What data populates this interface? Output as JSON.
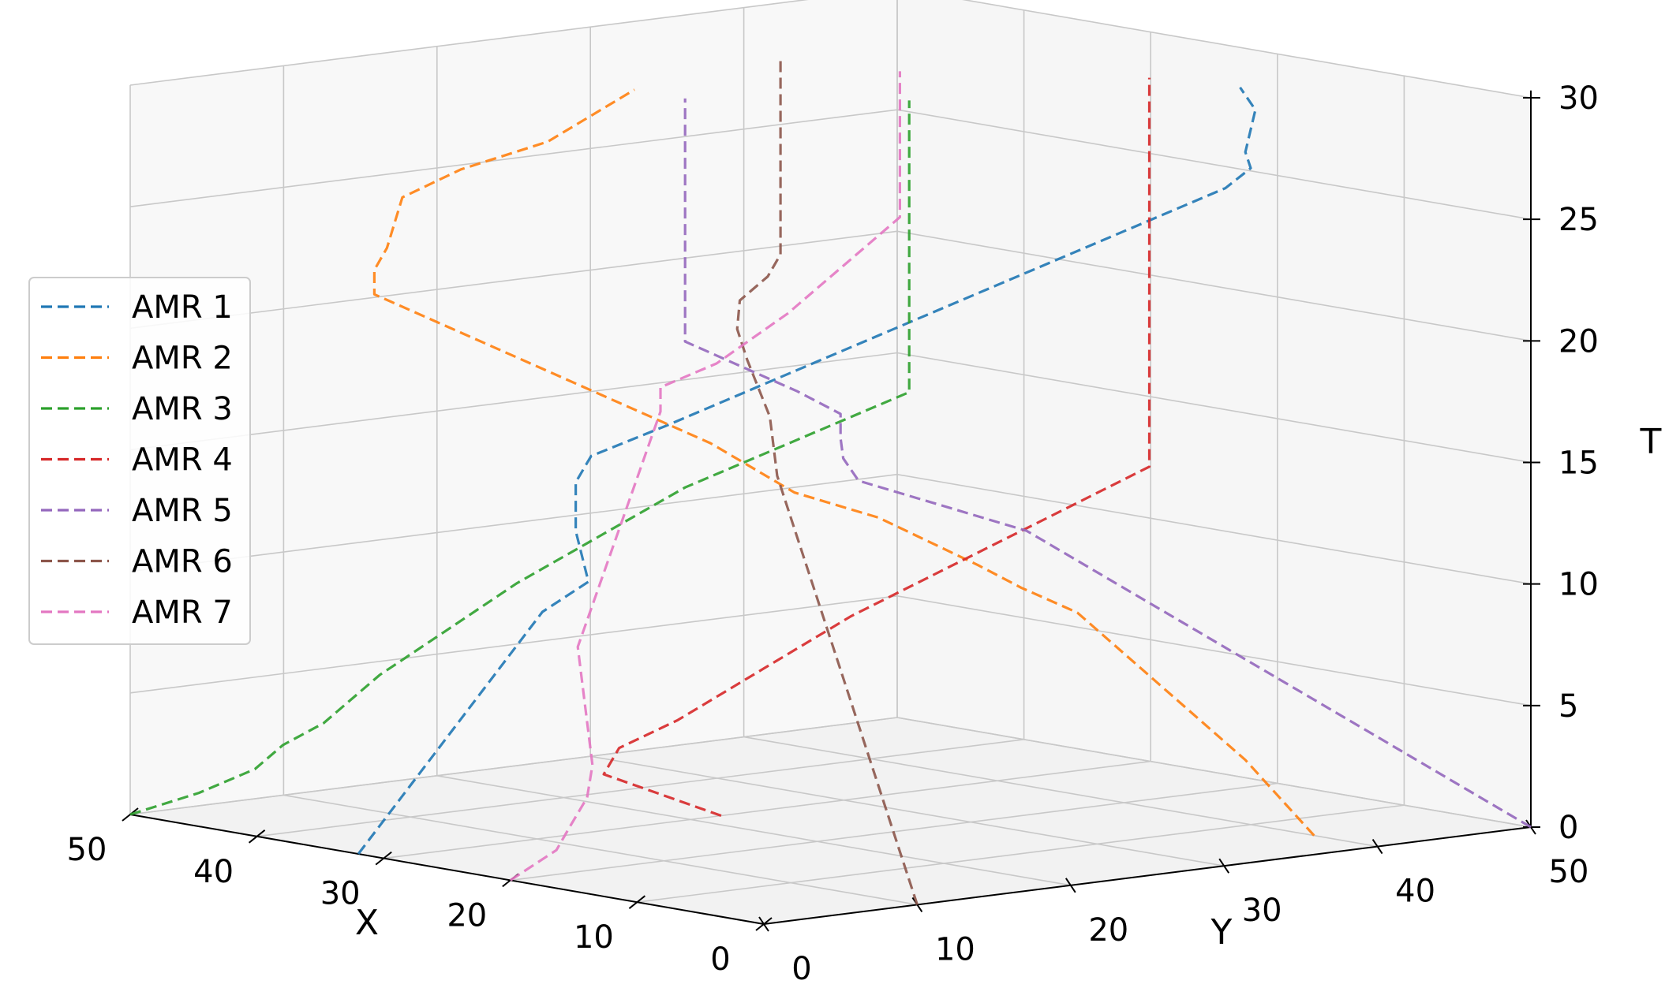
{
  "chart_data": {
    "type": "line",
    "projection": "3d",
    "title": "",
    "xlabel": "X",
    "ylabel": "Y",
    "zlabel": "T",
    "xlim": [
      0,
      50
    ],
    "ylim": [
      0,
      50
    ],
    "zlim": [
      0,
      30
    ],
    "x_ticks": [
      "0",
      "10",
      "20",
      "30",
      "40",
      "50"
    ],
    "y_ticks": [
      "0",
      "10",
      "20",
      "30",
      "40",
      "50"
    ],
    "z_ticks": [
      "0",
      "5",
      "10",
      "15",
      "20",
      "25",
      "30"
    ],
    "grid": true,
    "legend_position": "left",
    "line_style": "dashed",
    "series": [
      {
        "name": "AMR 1",
        "color": "#1f77b4",
        "points": [
          [
            32,
            0,
            0
          ],
          [
            32,
            4,
            3
          ],
          [
            32,
            8,
            6
          ],
          [
            32,
            12,
            9
          ],
          [
            32,
            15,
            10
          ],
          [
            33,
            15,
            12
          ],
          [
            33,
            15,
            14
          ],
          [
            33,
            16,
            15
          ],
          [
            32,
            20,
            16
          ],
          [
            28,
            24,
            18
          ],
          [
            24,
            28,
            20
          ],
          [
            20,
            32,
            22
          ],
          [
            16,
            36,
            24
          ],
          [
            12,
            40,
            26
          ],
          [
            10,
            40,
            27
          ],
          [
            8,
            38,
            28
          ],
          [
            6,
            37,
            30
          ],
          [
            6,
            36,
            31
          ]
        ]
      },
      {
        "name": "AMR 2",
        "color": "#ff7f0e",
        "points": [
          [
            5,
            40,
            0
          ],
          [
            8,
            38,
            3
          ],
          [
            11,
            35,
            6
          ],
          [
            14,
            32,
            9
          ],
          [
            16,
            30,
            10
          ],
          [
            17,
            28,
            11
          ],
          [
            20,
            24,
            13
          ],
          [
            23,
            21,
            14
          ],
          [
            26,
            18,
            16
          ],
          [
            30,
            14,
            18
          ],
          [
            34,
            10,
            20
          ],
          [
            38,
            6,
            22
          ],
          [
            38,
            6,
            23
          ],
          [
            37,
            6,
            24
          ],
          [
            37,
            7,
            26
          ],
          [
            36,
            10,
            27
          ],
          [
            34,
            14,
            28
          ],
          [
            32,
            18,
            30
          ]
        ]
      },
      {
        "name": "AMR 3",
        "color": "#2ca02c",
        "points": [
          [
            50,
            0,
            0
          ],
          [
            47,
            2,
            1
          ],
          [
            45,
            4,
            2
          ],
          [
            44,
            5,
            3
          ],
          [
            42,
            6,
            4
          ],
          [
            40,
            8,
            6
          ],
          [
            37,
            10,
            8
          ],
          [
            34,
            12,
            10
          ],
          [
            31,
            15,
            12
          ],
          [
            28,
            18,
            14
          ],
          [
            24,
            22,
            16
          ],
          [
            20,
            26,
            18
          ],
          [
            20,
            26,
            20
          ],
          [
            20,
            26,
            22
          ],
          [
            20,
            26,
            24
          ],
          [
            20,
            26,
            26
          ],
          [
            20,
            26,
            28
          ],
          [
            20,
            26,
            30
          ]
        ]
      },
      {
        "name": "AMR 4",
        "color": "#d62728",
        "points": [
          [
            30,
            22,
            0
          ],
          [
            31,
            19,
            1
          ],
          [
            32,
            16,
            2
          ],
          [
            32,
            17,
            3
          ],
          [
            31,
            20,
            4
          ],
          [
            29,
            24,
            6
          ],
          [
            27,
            28,
            8
          ],
          [
            24,
            32,
            10
          ],
          [
            21,
            36,
            12
          ],
          [
            18,
            40,
            14
          ],
          [
            18,
            40,
            16
          ],
          [
            18,
            40,
            18
          ],
          [
            18,
            40,
            20
          ],
          [
            18,
            40,
            22
          ],
          [
            18,
            40,
            24
          ],
          [
            18,
            40,
            26
          ],
          [
            18,
            40,
            28
          ],
          [
            18,
            40,
            30
          ]
        ]
      },
      {
        "name": "AMR 5",
        "color": "#9467bd",
        "points": [
          [
            0,
            50,
            0
          ],
          [
            3,
            47,
            2
          ],
          [
            6,
            44,
            4
          ],
          [
            9,
            41,
            6
          ],
          [
            12,
            38,
            8
          ],
          [
            15,
            35,
            10
          ],
          [
            18,
            32,
            12
          ],
          [
            21,
            29,
            13
          ],
          [
            24,
            26,
            14
          ],
          [
            24,
            25,
            15
          ],
          [
            23,
            24,
            16
          ],
          [
            23,
            24,
            17
          ],
          [
            24,
            22,
            18
          ],
          [
            26,
            20,
            19
          ],
          [
            28,
            18,
            20
          ],
          [
            28,
            18,
            22
          ],
          [
            28,
            18,
            26
          ],
          [
            28,
            18,
            30
          ]
        ]
      },
      {
        "name": "AMR 6",
        "color": "#8c564b",
        "points": [
          [
            0,
            10,
            0
          ],
          [
            4,
            12,
            2
          ],
          [
            8,
            14,
            4
          ],
          [
            12,
            16,
            6
          ],
          [
            16,
            18,
            8
          ],
          [
            20,
            20,
            10
          ],
          [
            24,
            22,
            12
          ],
          [
            28,
            24,
            14
          ],
          [
            31,
            26,
            16
          ],
          [
            34,
            27,
            18
          ],
          [
            36,
            28,
            19
          ],
          [
            37,
            29,
            20
          ],
          [
            36,
            30,
            21
          ],
          [
            35,
            30,
            22
          ],
          [
            35,
            30,
            24
          ],
          [
            35,
            30,
            26
          ],
          [
            35,
            30,
            28
          ],
          [
            35,
            30,
            30
          ]
        ]
      },
      {
        "name": "AMR 7",
        "color": "#e377c2",
        "points": [
          [
            20,
            0,
            0
          ],
          [
            20,
            3,
            1
          ],
          [
            19,
            3,
            2
          ],
          [
            20,
            5,
            3
          ],
          [
            22,
            7,
            4
          ],
          [
            25,
            9,
            6
          ],
          [
            28,
            11,
            8
          ],
          [
            30,
            14,
            10
          ],
          [
            32,
            17,
            12
          ],
          [
            34,
            20,
            14
          ],
          [
            36,
            23,
            16
          ],
          [
            36,
            23,
            17
          ],
          [
            34,
            25,
            18
          ],
          [
            32,
            28,
            20
          ],
          [
            30,
            30,
            22
          ],
          [
            28,
            32,
            24
          ],
          [
            28,
            32,
            27
          ],
          [
            28,
            32,
            30
          ]
        ]
      }
    ]
  }
}
